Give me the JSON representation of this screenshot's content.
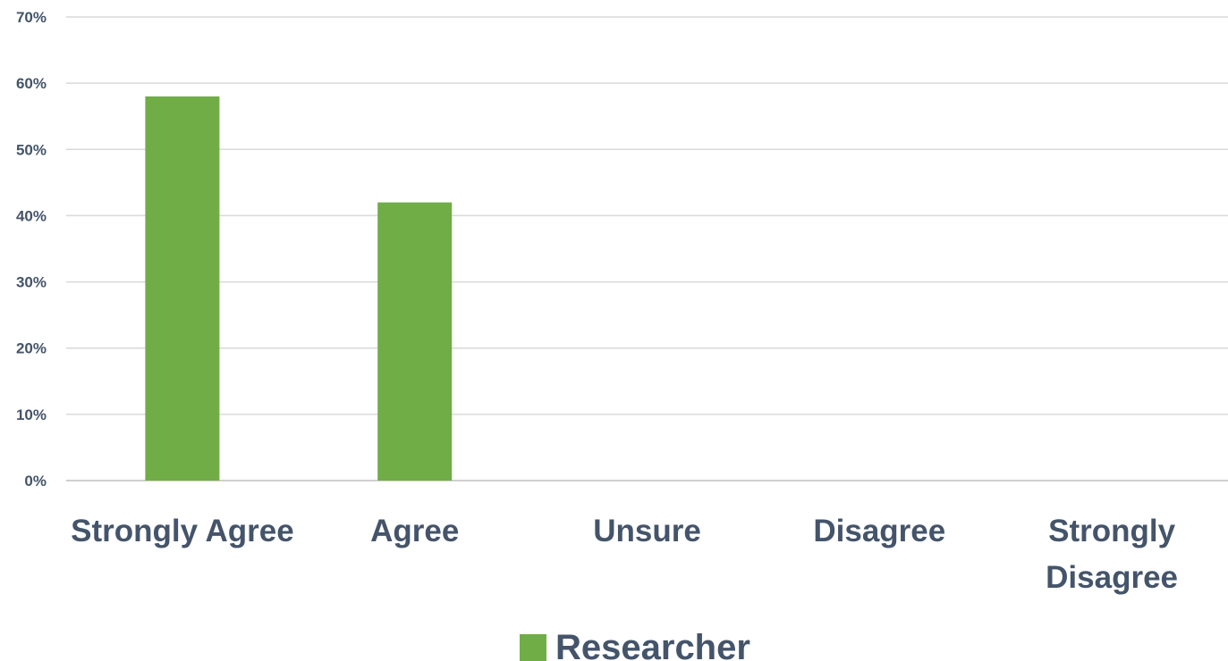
{
  "chart_data": {
    "type": "bar",
    "categories": [
      [
        "Strongly Agree"
      ],
      [
        "Agree"
      ],
      [
        "Unsure"
      ],
      [
        "Disagree"
      ],
      [
        "Strongly",
        "Disagree"
      ]
    ],
    "series": [
      {
        "name": "Researcher",
        "values": [
          58,
          42,
          0,
          0,
          0
        ],
        "color": "#70ad47"
      }
    ],
    "yticks": [
      "0%",
      "10%",
      "20%",
      "30%",
      "40%",
      "50%",
      "60%",
      "70%"
    ],
    "ylim": [
      0,
      70
    ],
    "grid": true,
    "legend_position": "bottom",
    "text_color": "#44546a"
  }
}
